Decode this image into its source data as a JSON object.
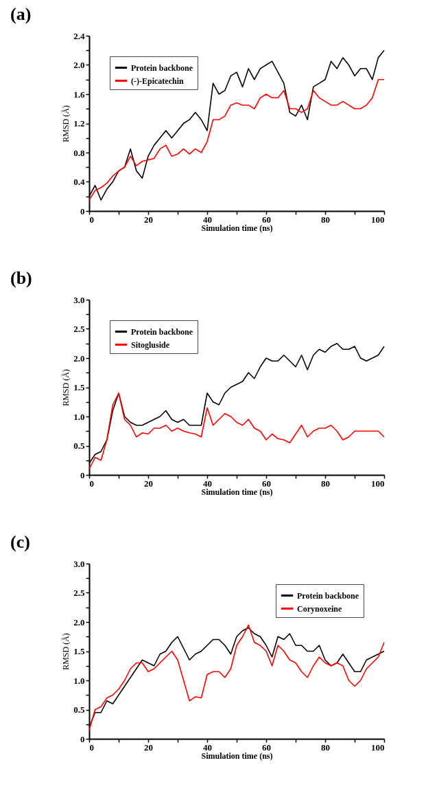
{
  "chart_data": [
    {
      "type": "line",
      "title": "(a)",
      "xlabel": "Simulation time (ns)",
      "ylabel": "RMSD (Å)",
      "x": [
        0,
        2,
        4,
        6,
        8,
        10,
        12,
        14,
        16,
        18,
        20,
        22,
        24,
        26,
        28,
        30,
        32,
        34,
        36,
        38,
        40,
        42,
        44,
        46,
        48,
        50,
        52,
        54,
        56,
        58,
        60,
        62,
        64,
        66,
        68,
        70,
        72,
        74,
        76,
        78,
        80,
        82,
        84,
        86,
        88,
        90,
        92,
        94,
        96,
        98,
        100
      ],
      "series": [
        {
          "name": "Protein backbone",
          "color": "#000000",
          "values": [
            0.2,
            0.35,
            0.15,
            0.3,
            0.4,
            0.55,
            0.6,
            0.85,
            0.55,
            0.45,
            0.75,
            0.9,
            1.0,
            1.1,
            1.0,
            1.1,
            1.2,
            1.25,
            1.35,
            1.25,
            1.1,
            1.75,
            1.6,
            1.65,
            1.85,
            1.9,
            1.7,
            1.95,
            1.8,
            1.95,
            2.0,
            2.05,
            1.9,
            1.75,
            1.35,
            1.3,
            1.45,
            1.25,
            1.7,
            1.75,
            1.8,
            2.05,
            1.95,
            2.1,
            2.0,
            1.85,
            1.95,
            1.95,
            1.8,
            2.1,
            2.2
          ]
        },
        {
          "name": "(-)-Epicatechin",
          "color": "#ff0000",
          "values": [
            0.15,
            0.28,
            0.32,
            0.38,
            0.48,
            0.55,
            0.6,
            0.75,
            0.62,
            0.68,
            0.7,
            0.72,
            0.85,
            0.9,
            0.75,
            0.78,
            0.85,
            0.78,
            0.85,
            0.8,
            0.95,
            1.25,
            1.25,
            1.3,
            1.45,
            1.48,
            1.45,
            1.45,
            1.4,
            1.55,
            1.6,
            1.55,
            1.55,
            1.65,
            1.4,
            1.4,
            1.35,
            1.4,
            1.65,
            1.55,
            1.5,
            1.45,
            1.45,
            1.5,
            1.45,
            1.4,
            1.4,
            1.45,
            1.55,
            1.8,
            1.8
          ]
        }
      ],
      "xlim": [
        0,
        100
      ],
      "xticks": [
        0,
        {
          "value": 10,
          "label": null
        },
        20,
        {
          "value": 30,
          "label": null
        },
        40,
        {
          "value": 50,
          "label": null
        },
        60,
        {
          "value": 70,
          "label": null
        },
        80,
        {
          "value": 90,
          "label": null
        },
        100
      ],
      "ylim": [
        0,
        2.4
      ],
      "yticks": [
        0,
        {
          "value": 0.2,
          "label": null
        },
        0.4,
        {
          "value": 0.6,
          "label": null
        },
        0.8,
        {
          "value": 1.0,
          "label": null
        },
        1.2,
        {
          "value": 1.4,
          "label": null
        },
        1.6,
        {
          "value": 1.8,
          "label": null
        },
        {
          "value": 2.0,
          "label": "2.0"
        },
        {
          "value": 2.2,
          "label": null
        },
        2.4
      ],
      "legend": "top left",
      "grid": false,
      "marker": "none",
      "line_style": "solid"
    },
    {
      "type": "line",
      "title": "(b)",
      "xlabel": "Simulation time (ns)",
      "ylabel": "RMSD (Å)",
      "x": [
        0,
        2,
        4,
        6,
        8,
        10,
        12,
        14,
        16,
        18,
        20,
        22,
        24,
        26,
        28,
        30,
        32,
        34,
        36,
        38,
        40,
        42,
        44,
        46,
        48,
        50,
        52,
        54,
        56,
        58,
        60,
        62,
        64,
        66,
        68,
        70,
        72,
        74,
        76,
        78,
        80,
        82,
        84,
        86,
        88,
        90,
        92,
        94,
        96,
        98,
        100
      ],
      "series": [
        {
          "name": "Protein backbone",
          "color": "#000000",
          "values": [
            0.2,
            0.35,
            0.4,
            0.6,
            1.1,
            1.4,
            1.0,
            0.9,
            0.85,
            0.85,
            0.9,
            0.95,
            1.0,
            1.1,
            0.95,
            0.9,
            0.95,
            0.85,
            0.85,
            0.85,
            1.4,
            1.25,
            1.2,
            1.4,
            1.5,
            1.55,
            1.6,
            1.75,
            1.65,
            1.85,
            2.0,
            1.95,
            1.95,
            2.05,
            1.95,
            1.85,
            2.05,
            1.8,
            2.05,
            2.15,
            2.1,
            2.2,
            2.25,
            2.15,
            2.15,
            2.2,
            2.0,
            1.95,
            2.0,
            2.05,
            2.2
          ]
        },
        {
          "name": "Sitogluside",
          "color": "#ff0000",
          "values": [
            0.1,
            0.3,
            0.25,
            0.6,
            1.2,
            1.4,
            0.95,
            0.85,
            0.65,
            0.72,
            0.7,
            0.8,
            0.8,
            0.85,
            0.75,
            0.8,
            0.75,
            0.72,
            0.7,
            0.65,
            1.15,
            0.85,
            0.95,
            1.05,
            1.0,
            0.9,
            0.85,
            0.95,
            0.8,
            0.75,
            0.6,
            0.7,
            0.62,
            0.6,
            0.55,
            0.7,
            0.85,
            0.65,
            0.75,
            0.8,
            0.8,
            0.85,
            0.75,
            0.6,
            0.65,
            0.75,
            0.75,
            0.75,
            0.75,
            0.75,
            0.65
          ]
        }
      ],
      "xlim": [
        0,
        100
      ],
      "xticks": [
        0,
        {
          "value": 10,
          "label": null
        },
        20,
        {
          "value": 30,
          "label": null
        },
        40,
        {
          "value": 50,
          "label": null
        },
        60,
        {
          "value": 70,
          "label": null
        },
        80,
        {
          "value": 90,
          "label": null
        },
        100
      ],
      "ylim": [
        0,
        3
      ],
      "yticks": [
        0,
        {
          "value": 0.25,
          "label": null
        },
        0.5,
        {
          "value": 0.75,
          "label": null
        },
        {
          "value": 1,
          "label": "1.0"
        },
        {
          "value": 1.25,
          "label": null
        },
        1.5,
        {
          "value": 1.75,
          "label": null
        },
        {
          "value": 2,
          "label": "2.0"
        },
        {
          "value": 2.25,
          "label": null
        },
        2.5,
        {
          "value": 2.75,
          "label": null
        },
        {
          "value": 3,
          "label": "3.0"
        }
      ],
      "legend": "top left",
      "grid": false,
      "marker": "none",
      "line_style": "solid"
    },
    {
      "type": "line",
      "title": "(c)",
      "xlabel": "Simulation time (ns)",
      "ylabel": "RMSD (Å)",
      "x": [
        0,
        2,
        4,
        6,
        8,
        10,
        12,
        14,
        16,
        18,
        20,
        22,
        24,
        26,
        28,
        30,
        32,
        34,
        36,
        38,
        40,
        42,
        44,
        46,
        48,
        50,
        52,
        54,
        56,
        58,
        60,
        62,
        64,
        66,
        68,
        70,
        72,
        74,
        76,
        78,
        80,
        82,
        84,
        86,
        88,
        90,
        92,
        94,
        96,
        98,
        100
      ],
      "series": [
        {
          "name": "Protein backbone",
          "color": "#000000",
          "values": [
            0.2,
            0.45,
            0.45,
            0.65,
            0.6,
            0.75,
            0.9,
            1.05,
            1.2,
            1.35,
            1.3,
            1.25,
            1.45,
            1.5,
            1.65,
            1.75,
            1.55,
            1.35,
            1.45,
            1.5,
            1.6,
            1.7,
            1.7,
            1.6,
            1.45,
            1.75,
            1.85,
            1.9,
            1.8,
            1.75,
            1.6,
            1.4,
            1.75,
            1.7,
            1.8,
            1.6,
            1.6,
            1.5,
            1.5,
            1.6,
            1.35,
            1.25,
            1.3,
            1.45,
            1.3,
            1.15,
            1.15,
            1.35,
            1.4,
            1.45,
            1.5
          ]
        },
        {
          "name": "Corynoxeine",
          "color": "#ff0000",
          "values": [
            0.15,
            0.5,
            0.55,
            0.7,
            0.75,
            0.85,
            1.0,
            1.2,
            1.3,
            1.3,
            1.15,
            1.2,
            1.3,
            1.4,
            1.5,
            1.35,
            1.0,
            0.65,
            0.72,
            0.7,
            1.1,
            1.15,
            1.15,
            1.05,
            1.2,
            1.6,
            1.75,
            1.95,
            1.65,
            1.6,
            1.5,
            1.25,
            1.6,
            1.5,
            1.35,
            1.3,
            1.15,
            1.05,
            1.25,
            1.4,
            1.3,
            1.25,
            1.3,
            1.25,
            1.0,
            0.9,
            1.0,
            1.2,
            1.3,
            1.4,
            1.65
          ]
        }
      ],
      "xlim": [
        0,
        100
      ],
      "xticks": [
        0,
        {
          "value": 10,
          "label": null
        },
        20,
        {
          "value": 30,
          "label": null
        },
        40,
        {
          "value": 50,
          "label": null
        },
        60,
        {
          "value": 70,
          "label": null
        },
        80,
        {
          "value": 90,
          "label": null
        },
        100
      ],
      "ylim": [
        0,
        3
      ],
      "yticks": [
        0,
        {
          "value": 0.25,
          "label": null
        },
        0.5,
        {
          "value": 0.75,
          "label": null
        },
        {
          "value": 1,
          "label": "1.0"
        },
        {
          "value": 1.25,
          "label": null
        },
        1.5,
        {
          "value": 1.75,
          "label": null
        },
        {
          "value": 2,
          "label": "2.0"
        },
        {
          "value": 2.25,
          "label": null
        },
        2.5,
        {
          "value": 2.75,
          "label": null
        },
        {
          "value": 3,
          "label": "3.0"
        }
      ],
      "legend": "top right",
      "grid": false,
      "marker": "none",
      "line_style": "solid"
    }
  ]
}
